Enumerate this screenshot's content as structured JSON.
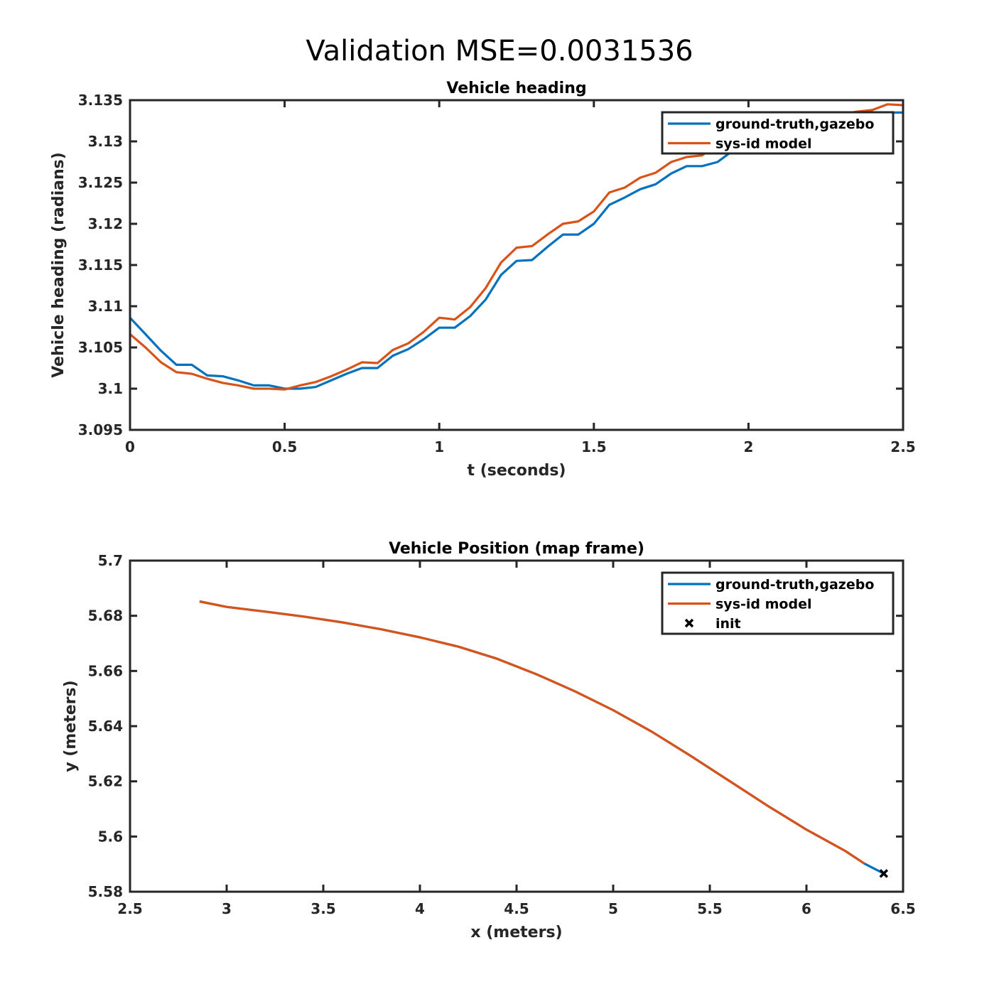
{
  "figure": {
    "suptitle": "Validation MSE=0.0031536"
  },
  "colors": {
    "ground_truth": "#0072BD",
    "model": "#D95319",
    "axes": "#262626",
    "init_marker": "#000000"
  },
  "chart_data": [
    {
      "type": "line",
      "title": "Vehicle heading",
      "xlabel": "t (seconds)",
      "ylabel": "Vehicle heading (radians)",
      "xlim": [
        0,
        2.5
      ],
      "ylim": [
        3.095,
        3.135
      ],
      "xticks": [
        0,
        0.5,
        1,
        1.5,
        2,
        2.5
      ],
      "xtick_labels": [
        "0",
        "0.5",
        "1",
        "1.5",
        "2",
        "2.5"
      ],
      "yticks": [
        3.095,
        3.1,
        3.105,
        3.11,
        3.115,
        3.12,
        3.125,
        3.13,
        3.135
      ],
      "ytick_labels": [
        "3.095",
        "3.1",
        "3.105",
        "3.11",
        "3.115",
        "3.12",
        "3.125",
        "3.13",
        "3.135"
      ],
      "grid": false,
      "legend_position": "top-right",
      "legend": [
        "ground-truth,gazebo",
        "sys-id model"
      ],
      "series": [
        {
          "name": "ground-truth,gazebo",
          "x": [
            0,
            0.05,
            0.1,
            0.15,
            0.2,
            0.25,
            0.3,
            0.35,
            0.4,
            0.45,
            0.5,
            0.55,
            0.6,
            0.65,
            0.7,
            0.75,
            0.8,
            0.85,
            0.9,
            0.95,
            1.0,
            1.05,
            1.1,
            1.15,
            1.2,
            1.25,
            1.3,
            1.35,
            1.4,
            1.45,
            1.5,
            1.55,
            1.6,
            1.65,
            1.7,
            1.75,
            1.8,
            1.85,
            1.9,
            1.95,
            2.0,
            2.05,
            2.1,
            2.15,
            2.2,
            2.25,
            2.3,
            2.35,
            2.4,
            2.45,
            2.5
          ],
          "y": [
            3.1086,
            3.1066,
            3.1046,
            3.1029,
            3.1029,
            3.1016,
            3.1015,
            3.101,
            3.1004,
            3.1004,
            3.1,
            3.1,
            3.1002,
            3.101,
            3.1018,
            3.1025,
            3.1025,
            3.104,
            3.1048,
            3.106,
            3.1074,
            3.1074,
            3.1088,
            3.1108,
            3.1138,
            3.1155,
            3.1156,
            3.1172,
            3.1187,
            3.1187,
            3.12,
            3.1223,
            3.1232,
            3.1242,
            3.1248,
            3.1261,
            3.127,
            3.127,
            3.1275,
            3.1289,
            3.1298,
            3.1306,
            3.1314,
            3.1321,
            3.1327,
            3.1331,
            3.1334,
            3.1335,
            3.1335,
            3.1335,
            3.1335
          ]
        },
        {
          "name": "sys-id model",
          "x": [
            0,
            0.05,
            0.1,
            0.15,
            0.2,
            0.25,
            0.3,
            0.35,
            0.4,
            0.45,
            0.5,
            0.55,
            0.6,
            0.65,
            0.7,
            0.75,
            0.8,
            0.85,
            0.9,
            0.95,
            1.0,
            1.05,
            1.1,
            1.15,
            1.2,
            1.25,
            1.3,
            1.35,
            1.4,
            1.45,
            1.5,
            1.55,
            1.6,
            1.65,
            1.7,
            1.75,
            1.8,
            1.85,
            1.9,
            1.95,
            2.0,
            2.05,
            2.1,
            2.15,
            2.2,
            2.25,
            2.3,
            2.35,
            2.4,
            2.45,
            2.5
          ],
          "y": [
            3.1066,
            3.105,
            3.1032,
            3.102,
            3.1018,
            3.1012,
            3.1007,
            3.1004,
            3.1,
            3.1,
            3.0999,
            3.1004,
            3.1008,
            3.1015,
            3.1023,
            3.1032,
            3.1031,
            3.1047,
            3.1055,
            3.1069,
            3.1086,
            3.1084,
            3.1099,
            3.1122,
            3.1153,
            3.1171,
            3.1173,
            3.1187,
            3.12,
            3.1203,
            3.1215,
            3.1238,
            3.1244,
            3.1256,
            3.1262,
            3.1275,
            3.1281,
            3.1283,
            3.1297,
            3.1306,
            3.1311,
            3.1315,
            3.1321,
            3.1326,
            3.1329,
            3.1331,
            3.1333,
            3.1336,
            3.1338,
            3.1345,
            3.1344
          ]
        }
      ]
    },
    {
      "type": "line",
      "title": "Vehicle Position (map frame)",
      "xlabel": "x (meters)",
      "ylabel": "y (meters)",
      "xlim": [
        2.5,
        6.5
      ],
      "ylim": [
        5.58,
        5.7
      ],
      "xticks": [
        2.5,
        3,
        3.5,
        4,
        4.5,
        5,
        5.5,
        6,
        6.5
      ],
      "xtick_labels": [
        "2.5",
        "3",
        "3.5",
        "4",
        "4.5",
        "5",
        "5.5",
        "6",
        "6.5"
      ],
      "yticks": [
        5.58,
        5.6,
        5.62,
        5.64,
        5.66,
        5.68,
        5.7
      ],
      "ytick_labels": [
        "5.58",
        "5.6",
        "5.62",
        "5.64",
        "5.66",
        "5.68",
        "5.7"
      ],
      "grid": false,
      "legend_position": "top-right",
      "legend": [
        "ground-truth,gazebo",
        "sys-id model",
        "init"
      ],
      "series": [
        {
          "name": "ground-truth,gazebo",
          "x": [
            6.4,
            6.3,
            6.2,
            6.0,
            5.8,
            5.6,
            5.4,
            5.2,
            5.0,
            4.8,
            4.6,
            4.4,
            4.2,
            4.0,
            3.8,
            3.6,
            3.4,
            3.2,
            3.0,
            2.86
          ],
          "y": [
            5.5866,
            5.5902,
            5.5948,
            5.6025,
            5.6111,
            5.6202,
            5.6293,
            5.638,
            5.6458,
            5.6527,
            5.6589,
            5.6644,
            5.6688,
            5.6722,
            5.6751,
            5.6776,
            5.6797,
            5.6815,
            5.6832,
            5.6852
          ]
        },
        {
          "name": "sys-id model",
          "x": [
            6.3,
            6.2,
            6.0,
            5.8,
            5.6,
            5.4,
            5.2,
            5.0,
            4.8,
            4.6,
            4.4,
            4.2,
            4.0,
            3.8,
            3.6,
            3.4,
            3.2,
            3.0,
            2.86
          ],
          "y": [
            5.5902,
            5.5948,
            5.6025,
            5.6111,
            5.6202,
            5.6293,
            5.638,
            5.6458,
            5.6527,
            5.6589,
            5.6644,
            5.6688,
            5.6722,
            5.6751,
            5.6776,
            5.6797,
            5.6815,
            5.6832,
            5.6852
          ]
        },
        {
          "name": "init",
          "marker": "x",
          "x": [
            6.4
          ],
          "y": [
            5.5866
          ]
        }
      ]
    }
  ]
}
